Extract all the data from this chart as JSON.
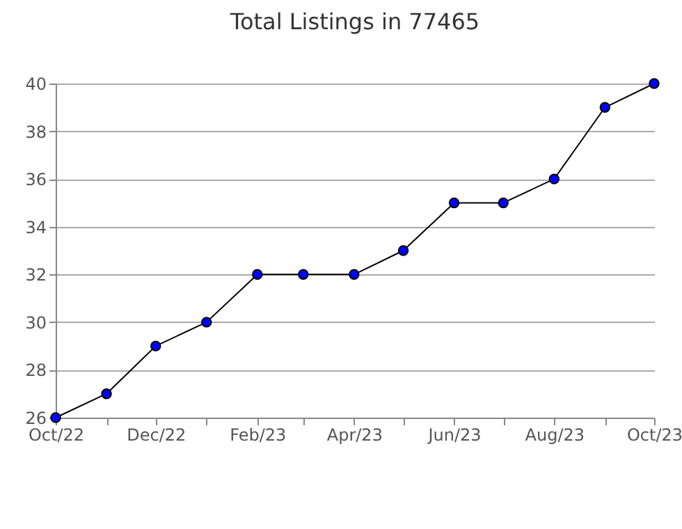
{
  "chart_data": {
    "type": "line",
    "title": "Total Listings in 77465",
    "x": [
      "2022-10",
      "2022-11",
      "2022-12",
      "2023-01",
      "2023-02",
      "2023-03",
      "2023-04",
      "2023-05",
      "2023-06",
      "2023-07",
      "2023-08",
      "2023-09",
      "2023-10"
    ],
    "series": [
      {
        "color": "#0000ff",
        "values": [
          26,
          27,
          29,
          30,
          32,
          32,
          32,
          33,
          35,
          35,
          36,
          39,
          40
        ]
      }
    ],
    "xlim": [
      "2022-10",
      "2023-10"
    ],
    "xticks": [
      {
        "value": "2022-10",
        "label": "Oct/22"
      },
      {
        "value": "2022-11",
        "label": null
      },
      {
        "value": "2022-12",
        "label": "Dec/22"
      },
      {
        "value": "2023-01",
        "label": null
      },
      {
        "value": "2023-02",
        "label": "Feb/23"
      },
      {
        "value": "2023-03",
        "label": null
      },
      {
        "value": "2023-04",
        "label": "Apr/23"
      },
      {
        "value": "2023-05",
        "label": null
      },
      {
        "value": "2023-06",
        "label": "Jun/23"
      },
      {
        "value": "2023-07",
        "label": null
      },
      {
        "value": "2023-08",
        "label": "Aug/23"
      },
      {
        "value": "2023-09",
        "label": null
      },
      {
        "value": "2023-10",
        "label": "Oct/23"
      }
    ],
    "ylim": [
      26,
      40
    ],
    "yticks": [
      26,
      28,
      30,
      32,
      34,
      36,
      38,
      40
    ],
    "grid": "y",
    "marker": "circle",
    "line_style": "solid"
  }
}
